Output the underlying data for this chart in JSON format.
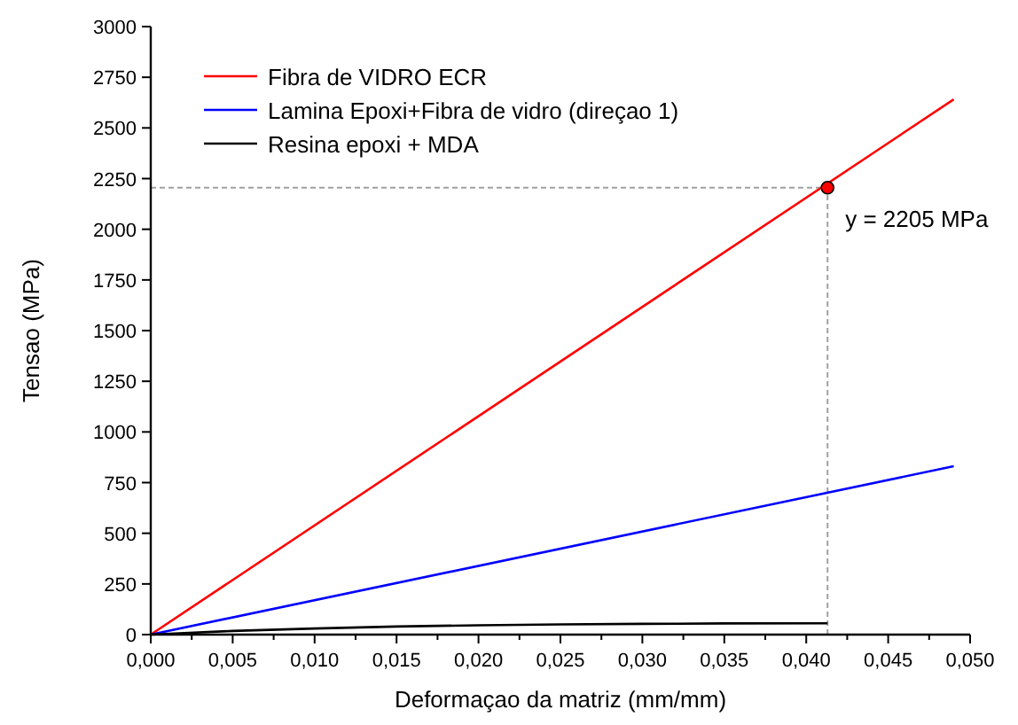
{
  "chart_data": {
    "type": "line",
    "xlabel": "Deformaçao da matriz (mm/mm)",
    "ylabel": "Tensao (MPa)",
    "xlim": [
      0,
      0.05
    ],
    "ylim": [
      0,
      3000
    ],
    "xticks": [
      {
        "value": 0,
        "label": "0,000"
      },
      {
        "value": 0.0025,
        "label": null
      },
      {
        "value": 0.005,
        "label": "0,005"
      },
      {
        "value": 0.0075,
        "label": null
      },
      {
        "value": 0.01,
        "label": "0,010"
      },
      {
        "value": 0.0125,
        "label": null
      },
      {
        "value": 0.015,
        "label": "0,015"
      },
      {
        "value": 0.0175,
        "label": null
      },
      {
        "value": 0.02,
        "label": "0,020"
      },
      {
        "value": 0.0225,
        "label": null
      },
      {
        "value": 0.025,
        "label": "0,025"
      },
      {
        "value": 0.0275,
        "label": null
      },
      {
        "value": 0.03,
        "label": "0,030"
      },
      {
        "value": 0.0325,
        "label": null
      },
      {
        "value": 0.035,
        "label": "0,035"
      },
      {
        "value": 0.0375,
        "label": null
      },
      {
        "value": 0.04,
        "label": "0,040"
      },
      {
        "value": 0.0425,
        "label": null
      },
      {
        "value": 0.045,
        "label": "0,045"
      },
      {
        "value": 0.0475,
        "label": null
      },
      {
        "value": 0.05,
        "label": "0,050"
      }
    ],
    "yticks": [
      0,
      250,
      500,
      750,
      1000,
      1250,
      1500,
      1750,
      2000,
      2250,
      2500,
      2750,
      3000
    ],
    "legend": "top left",
    "grid": false,
    "marker": "none",
    "line_style": "solid",
    "series": [
      {
        "name": "Fibra de VIDRO ECR",
        "color": "#ff0000",
        "x": [
          0,
          0.049
        ],
        "values": [
          0,
          2641
        ]
      },
      {
        "name": "Lamina Epoxi+Fibra de vidro (direçao 1)",
        "color": "#0000ff",
        "x": [
          0,
          0.049
        ],
        "values": [
          0,
          831
        ]
      },
      {
        "name": "Resina epoxi + MDA",
        "color": "#000000",
        "x": [
          0,
          0.005,
          0.01,
          0.015,
          0.02,
          0.025,
          0.03,
          0.035,
          0.0413
        ],
        "values": [
          0,
          18,
          30,
          40,
          46,
          50,
          53,
          55,
          56
        ]
      },
      {
        "type": "scatter",
        "marker": "circle",
        "color": "#ff0000",
        "x": [
          0.0413
        ],
        "values": [
          2205
        ]
      }
    ],
    "ref_lines": [
      {
        "axis": "x",
        "value": 0.0413,
        "color": "#a0a0a0",
        "line_style": "dashed"
      },
      {
        "axis": "y",
        "value": 2205,
        "color": "#a0a0a0",
        "line_style": "dashed"
      }
    ],
    "annotations": [
      {
        "text": "y = 2205 MPa",
        "x": 0.0413,
        "y": 2205
      }
    ]
  }
}
